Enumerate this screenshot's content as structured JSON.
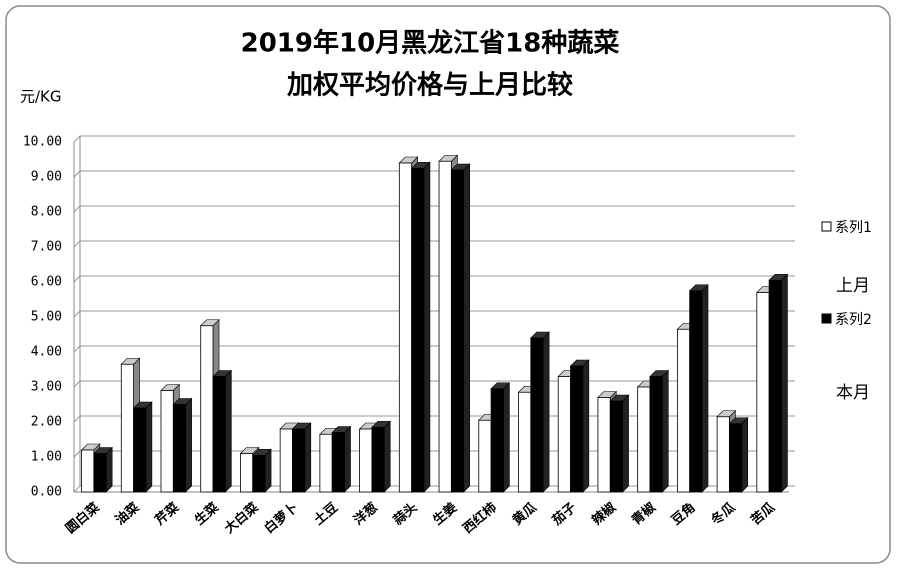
{
  "chart_data": {
    "type": "bar",
    "title": [
      "2019年10月黑龙江省18种蔬菜",
      "加权平均价格与上月比较"
    ],
    "y_label": "元/KG",
    "categories": [
      "圆白菜",
      "油菜",
      "芹菜",
      "生菜",
      "大白菜",
      "白萝卜",
      "土豆",
      "洋葱",
      "蒜头",
      "生姜",
      "西红柿",
      "黄瓜",
      "茄子",
      "辣椒",
      "青椒",
      "豆角",
      "冬瓜",
      "苦瓜"
    ],
    "series": [
      {
        "name": "系列1",
        "color": "#ffffff",
        "values": [
          1.2,
          3.65,
          2.9,
          4.75,
          1.1,
          1.8,
          1.65,
          1.8,
          9.4,
          9.45,
          2.05,
          2.85,
          3.3,
          2.7,
          3.0,
          4.65,
          2.15,
          5.7
        ]
      },
      {
        "name": "系列2",
        "color": "#000000",
        "values": [
          1.1,
          2.4,
          2.5,
          3.3,
          1.05,
          1.8,
          1.7,
          1.85,
          9.25,
          9.2,
          2.95,
          4.4,
          3.6,
          2.6,
          3.3,
          5.75,
          1.95,
          6.05
        ]
      }
    ],
    "legend_notes": [
      "上月",
      "本月"
    ],
    "ylim": [
      0,
      10
    ],
    "yticks": [
      {
        "value": 0,
        "label": "0.00"
      },
      {
        "value": 1,
        "label": "1.00"
      },
      {
        "value": 2,
        "label": "2.00"
      },
      {
        "value": 3,
        "label": "3.00"
      },
      {
        "value": 4,
        "label": "4.00"
      },
      {
        "value": 5,
        "label": "5.00"
      },
      {
        "value": 6,
        "label": "6.00"
      },
      {
        "value": 7,
        "label": "7.00"
      },
      {
        "value": 8,
        "label": "8.00"
      },
      {
        "value": 9,
        "label": "9.00"
      },
      {
        "value": 10,
        "label": "10.00"
      }
    ],
    "grid": true
  }
}
